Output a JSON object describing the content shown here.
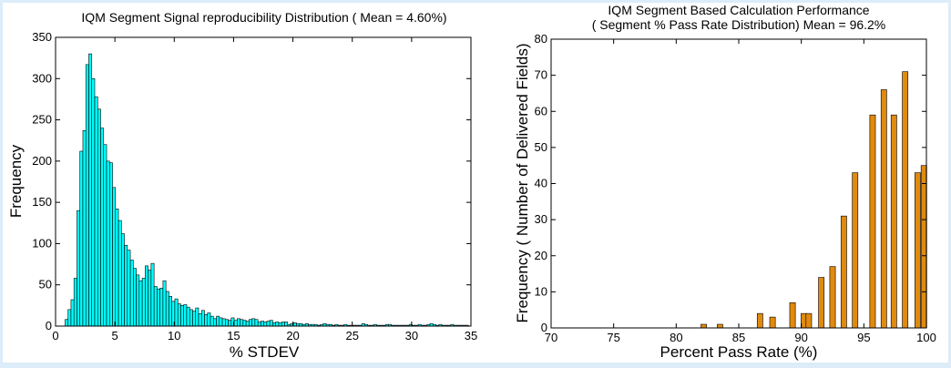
{
  "chart_data": [
    {
      "type": "bar",
      "title": "IQM Segment Signal reproducibility Distribution ( Mean = 4.60%)",
      "xlabel": "% STDEV",
      "ylabel": "Frequency",
      "xlim": [
        0,
        35
      ],
      "ylim": [
        0,
        350
      ],
      "xticks": [
        0,
        5,
        10,
        15,
        20,
        25,
        30,
        35
      ],
      "yticks": [
        0,
        50,
        100,
        150,
        200,
        250,
        300,
        350
      ],
      "grid": false,
      "bar_color": "#00ffff",
      "bin_start": 0.8,
      "bin_width": 0.25,
      "values": [
        8,
        20,
        32,
        58,
        140,
        212,
        237,
        317,
        330,
        300,
        278,
        263,
        240,
        220,
        200,
        198,
        168,
        142,
        128,
        112,
        98,
        92,
        80,
        70,
        62,
        55,
        58,
        73,
        68,
        76,
        48,
        45,
        46,
        55,
        42,
        36,
        30,
        33,
        27,
        25,
        26,
        23,
        20,
        18,
        22,
        15,
        19,
        14,
        16,
        12,
        9,
        12,
        10,
        9,
        8,
        7,
        10,
        7,
        9,
        8,
        7,
        6,
        8,
        9,
        8,
        5,
        6,
        5,
        6,
        7,
        4,
        5,
        4,
        5,
        5,
        2,
        3,
        4,
        3,
        3,
        2,
        3,
        2,
        2,
        2,
        1,
        2,
        3,
        2,
        2,
        1,
        2,
        1,
        1,
        2,
        1,
        1,
        1,
        1,
        1,
        3,
        2,
        1,
        1,
        2,
        1,
        1,
        1,
        2,
        2,
        1,
        1,
        1,
        1,
        1,
        1,
        2,
        1,
        1,
        2,
        1,
        1,
        2,
        3,
        2,
        1,
        2,
        1,
        1,
        1,
        2,
        1,
        1,
        1,
        1,
        1,
        1,
        1,
        2,
        1,
        1,
        1,
        1,
        1,
        1,
        1,
        1,
        1,
        2,
        1,
        1,
        1,
        1,
        1,
        1,
        1,
        1,
        1,
        1,
        1,
        1,
        1,
        1,
        1,
        1,
        1,
        1,
        1,
        1,
        1,
        1,
        1,
        1,
        1,
        1,
        1
      ]
    },
    {
      "type": "bar",
      "title": "IQM Segment Based Calculation Performance",
      "subtitle": "( Segment % Pass Rate Distribution) Mean = 96.2%",
      "xlabel": "Percent Pass Rate (%)",
      "ylabel": "Frequency ( Number of Delivered Fields)",
      "xlim": [
        70,
        100
      ],
      "ylim": [
        0,
        80
      ],
      "xticks": [
        70,
        75,
        80,
        85,
        90,
        95,
        100
      ],
      "yticks": [
        0,
        10,
        20,
        30,
        40,
        50,
        60,
        70,
        80
      ],
      "grid": false,
      "bar_color": "#e08a0e",
      "bar_width": 0.45,
      "bars": [
        {
          "x": 82.2,
          "y": 1
        },
        {
          "x": 83.5,
          "y": 1
        },
        {
          "x": 86.7,
          "y": 4
        },
        {
          "x": 87.7,
          "y": 3
        },
        {
          "x": 89.3,
          "y": 7
        },
        {
          "x": 90.2,
          "y": 4
        },
        {
          "x": 90.6,
          "y": 4
        },
        {
          "x": 91.6,
          "y": 14
        },
        {
          "x": 92.5,
          "y": 17
        },
        {
          "x": 93.4,
          "y": 31
        },
        {
          "x": 94.3,
          "y": 43
        },
        {
          "x": 95.7,
          "y": 59
        },
        {
          "x": 96.6,
          "y": 66
        },
        {
          "x": 97.4,
          "y": 59
        },
        {
          "x": 98.3,
          "y": 71
        },
        {
          "x": 99.3,
          "y": 43
        },
        {
          "x": 99.8,
          "y": 45
        }
      ]
    }
  ]
}
